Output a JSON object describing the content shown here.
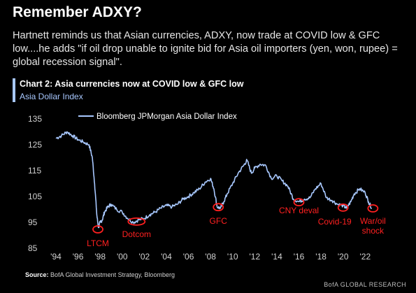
{
  "header": {
    "title": "Remember ADXY?",
    "description": "Hartnett reminds us that Asian currencies, ADXY, now trade at COVID low & GFC low....he adds \"if oil drop unable to ignite bid for Asia oil importers (yen, won, rupee) = global recession signal\"."
  },
  "chart_data": {
    "type": "line",
    "title": "Chart 2: Asia currencies now at COVID low & GFC low",
    "subtitle": "Asia Dollar Index",
    "ylim": [
      85,
      135
    ],
    "yticks": [
      "85",
      "95",
      "105",
      "115",
      "125",
      "135"
    ],
    "xlim": [
      1994,
      2023.5
    ],
    "xticks": [
      "'94",
      "'96",
      "'98",
      "'00",
      "'02",
      "'04",
      "'06",
      "'08",
      "'10",
      "'12",
      "'14",
      "'16",
      "'18",
      "'20",
      "'22"
    ],
    "legend": "top-left",
    "series": [
      {
        "name": "Bloomberg JPMorgan Asia Dollar Index",
        "color": "#a8c8ff",
        "x": [
          1994.0,
          1994.5,
          1995.0,
          1995.5,
          1996.0,
          1996.5,
          1997.0,
          1997.3,
          1997.5,
          1997.7,
          1997.85,
          1998.0,
          1998.2,
          1998.4,
          1998.7,
          1999.0,
          1999.5,
          2000.0,
          2000.5,
          2001.0,
          2001.5,
          2002.0,
          2002.5,
          2003.0,
          2003.5,
          2004.0,
          2004.5,
          2005.0,
          2005.5,
          2006.0,
          2006.5,
          2007.0,
          2007.5,
          2008.0,
          2008.3,
          2008.6,
          2008.9,
          2009.2,
          2009.5,
          2010.0,
          2010.5,
          2011.0,
          2011.3,
          2011.7,
          2012.0,
          2012.5,
          2013.0,
          2013.5,
          2014.0,
          2014.5,
          2015.0,
          2015.5,
          2016.0,
          2016.5,
          2017.0,
          2017.5,
          2018.0,
          2018.5,
          2019.0,
          2019.5,
          2020.0,
          2020.3,
          2020.7,
          2021.0,
          2021.5,
          2022.0,
          2022.3,
          2022.6
        ],
        "values": [
          127.5,
          128.5,
          130.0,
          128.5,
          127.0,
          126.0,
          125.0,
          120.0,
          110.0,
          98.0,
          93.0,
          95.0,
          96.0,
          99.0,
          101.0,
          102.0,
          100.0,
          99.0,
          96.5,
          95.0,
          96.0,
          96.5,
          98.0,
          99.0,
          100.5,
          101.5,
          101.0,
          102.0,
          104.0,
          105.0,
          106.5,
          108.0,
          110.5,
          112.0,
          108.0,
          101.0,
          100.5,
          103.0,
          106.0,
          110.0,
          114.0,
          117.0,
          119.0,
          114.0,
          116.0,
          117.5,
          117.0,
          112.0,
          113.0,
          111.0,
          109.0,
          104.0,
          103.0,
          104.0,
          104.5,
          108.0,
          110.0,
          104.5,
          103.5,
          102.0,
          101.5,
          100.5,
          103.0,
          106.0,
          108.0,
          106.5,
          103.0,
          100.5
        ]
      }
    ],
    "annotations": [
      {
        "text": "LTCM",
        "x": 1997.8,
        "y": 92.3
      },
      {
        "text": "Dotcom",
        "x": 2001.3,
        "y": 95.3
      },
      {
        "text": "GFC",
        "x": 2008.7,
        "y": 100.9
      },
      {
        "text": "CNY deval",
        "x": 2016.0,
        "y": 102.8
      },
      {
        "text": "Covid-19",
        "x": 2020.0,
        "y": 100.7
      },
      {
        "text": "War/oil shock",
        "x": 2022.7,
        "y": 100.4
      }
    ],
    "source_label": "Source:",
    "source_text": "BofA Global Investment Strategy, Bloomberg",
    "watermark": "BofA GLOBAL RESEARCH"
  },
  "colors": {
    "line": "#a8c8ff",
    "annotation": "#ff2020",
    "background": "#000000"
  }
}
